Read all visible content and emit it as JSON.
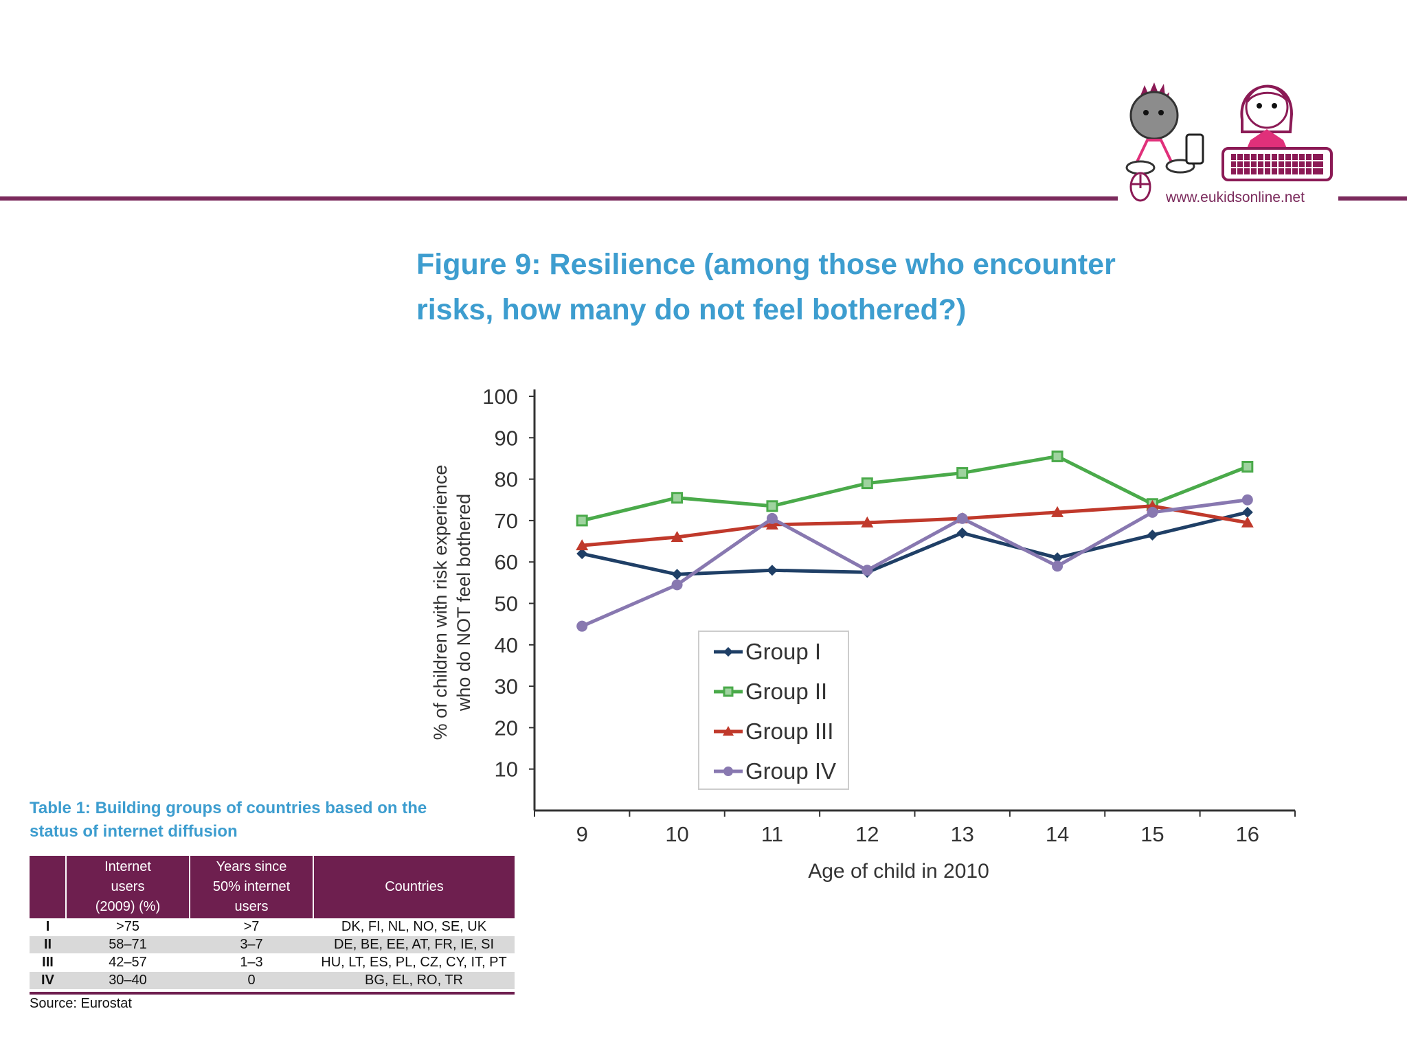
{
  "header": {
    "url": "www.eukidsonline.net",
    "accent_color": "#7b2a5c",
    "logo_icon": "kids-at-computer-logo"
  },
  "figure": {
    "title_line1": "Figure 9: Resilience (among those who encounter",
    "title_line2": "risks, how many do not feel bothered?)",
    "title_color": "#3d9dcf"
  },
  "chart_data": {
    "type": "line",
    "ylabel_line1": "% of children with risk experience",
    "ylabel_line2": "who do NOT feel bothered",
    "xlabel": "Age of child in 2010",
    "x": [
      9,
      10,
      11,
      12,
      13,
      14,
      15,
      16
    ],
    "ylim": [
      0,
      100
    ],
    "yticks": [
      10,
      20,
      30,
      40,
      50,
      60,
      70,
      80,
      90,
      100
    ],
    "grid": false,
    "legend_position": "center",
    "series": [
      {
        "name": "Group I",
        "color": "#1f3f66",
        "marker": "diamond",
        "values": [
          62,
          57,
          58,
          57.5,
          67,
          61,
          66.5,
          72
        ]
      },
      {
        "name": "Group II",
        "color": "#4aaa4a",
        "marker": "square",
        "values": [
          70,
          75.5,
          73.5,
          79,
          81.5,
          85.5,
          74,
          83
        ]
      },
      {
        "name": "Group III",
        "color": "#c0392b",
        "marker": "triangle",
        "values": [
          64,
          66,
          69,
          69.5,
          70.5,
          72,
          73.5,
          69.5
        ]
      },
      {
        "name": "Group IV",
        "color": "#8878b0",
        "marker": "circle",
        "values": [
          44.5,
          54.5,
          70.5,
          58,
          70.5,
          59,
          72,
          75
        ]
      }
    ]
  },
  "table": {
    "title_line1": "Table 1: Building groups of countries based on the",
    "title_line2": "status of internet diffusion",
    "headers": {
      "group": "",
      "internet_users_1": "Internet",
      "internet_users_2": "users",
      "internet_users_3": "(2009) (%)",
      "years_1": "Years since",
      "years_2": "50% internet",
      "years_3": "users",
      "countries": "Countries"
    },
    "rows": [
      {
        "group": "I",
        "users": ">75",
        "years": ">7",
        "countries": "DK, FI, NL, NO, SE, UK"
      },
      {
        "group": "II",
        "users": "58–71",
        "years": "3–7",
        "countries": "DE, BE, EE, AT, FR, IE, SI"
      },
      {
        "group": "III",
        "users": "42–57",
        "years": "1–3",
        "countries": "HU, LT, ES, PL, CZ, CY, IT, PT"
      },
      {
        "group": "IV",
        "users": "30–40",
        "years": "0",
        "countries": "BG, EL, RO, TR"
      }
    ],
    "source": "Source: Eurostat",
    "header_color": "#6e1f4f"
  }
}
